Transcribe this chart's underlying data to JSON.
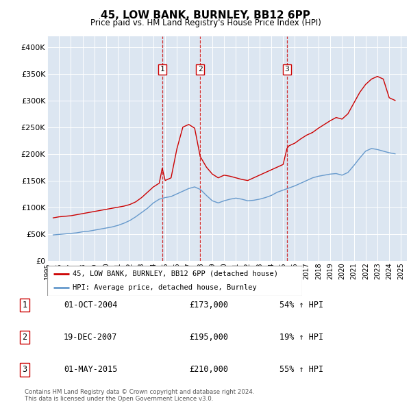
{
  "title": "45, LOW BANK, BURNLEY, BB12 6PP",
  "subtitle": "Price paid vs. HM Land Registry's House Price Index (HPI)",
  "legend_label_red": "45, LOW BANK, BURNLEY, BB12 6PP (detached house)",
  "legend_label_blue": "HPI: Average price, detached house, Burnley",
  "transactions": [
    {
      "num": 1,
      "date": "01-OCT-2004",
      "price": 173000,
      "pct": "54%",
      "dir": "↑"
    },
    {
      "num": 2,
      "date": "19-DEC-2007",
      "price": 195000,
      "pct": "19%",
      "dir": "↑"
    },
    {
      "num": 3,
      "date": "01-MAY-2015",
      "price": 210000,
      "pct": "55%",
      "dir": "↑"
    }
  ],
  "transaction_dates_decimal": [
    2004.75,
    2007.97,
    2015.33
  ],
  "footer": "Contains HM Land Registry data © Crown copyright and database right 2024.\nThis data is licensed under the Open Government Licence v3.0.",
  "plot_bg_color": "#dce6f1",
  "red_color": "#cc0000",
  "blue_color": "#6699cc",
  "ylim": [
    0,
    420000
  ],
  "yticks": [
    0,
    50000,
    100000,
    150000,
    200000,
    250000,
    300000,
    350000,
    400000
  ],
  "ytick_labels": [
    "£0",
    "£50K",
    "£100K",
    "£150K",
    "£200K",
    "£250K",
    "£300K",
    "£350K",
    "£400K"
  ],
  "hpi_x": [
    1995.5,
    1996.0,
    1996.5,
    1997.0,
    1997.5,
    1998.0,
    1998.5,
    1999.0,
    1999.5,
    2000.0,
    2000.5,
    2001.0,
    2001.5,
    2002.0,
    2002.5,
    2003.0,
    2003.5,
    2004.0,
    2004.5,
    2005.0,
    2005.5,
    2006.0,
    2006.5,
    2007.0,
    2007.5,
    2008.0,
    2008.5,
    2009.0,
    2009.5,
    2010.0,
    2010.5,
    2011.0,
    2011.5,
    2012.0,
    2012.5,
    2013.0,
    2013.5,
    2014.0,
    2014.5,
    2015.0,
    2015.5,
    2016.0,
    2016.5,
    2017.0,
    2017.5,
    2018.0,
    2018.5,
    2019.0,
    2019.5,
    2020.0,
    2020.5,
    2021.0,
    2021.5,
    2022.0,
    2022.5,
    2023.0,
    2023.5,
    2024.0,
    2024.5
  ],
  "hpi_y": [
    48000,
    49000,
    50000,
    51000,
    52000,
    54000,
    55000,
    57000,
    59000,
    61000,
    63000,
    66000,
    70000,
    75000,
    82000,
    90000,
    98000,
    108000,
    115000,
    118000,
    120000,
    125000,
    130000,
    135000,
    138000,
    133000,
    122000,
    112000,
    108000,
    112000,
    115000,
    117000,
    115000,
    112000,
    113000,
    115000,
    118000,
    122000,
    128000,
    132000,
    136000,
    140000,
    145000,
    150000,
    155000,
    158000,
    160000,
    162000,
    163000,
    160000,
    165000,
    178000,
    192000,
    205000,
    210000,
    208000,
    205000,
    202000,
    200000
  ],
  "red_x": [
    1995.5,
    1996.0,
    1996.5,
    1997.0,
    1997.5,
    1998.0,
    1998.5,
    1999.0,
    1999.5,
    2000.0,
    2000.5,
    2001.0,
    2001.5,
    2002.0,
    2002.5,
    2003.0,
    2003.5,
    2004.0,
    2004.5,
    2004.75,
    2005.0,
    2005.5,
    2006.0,
    2006.5,
    2007.0,
    2007.5,
    2007.97,
    2008.5,
    2009.0,
    2009.5,
    2010.0,
    2010.5,
    2011.0,
    2011.5,
    2012.0,
    2012.5,
    2013.0,
    2013.5,
    2014.0,
    2014.5,
    2015.0,
    2015.33,
    2015.5,
    2016.0,
    2016.5,
    2017.0,
    2017.5,
    2018.0,
    2018.5,
    2019.0,
    2019.5,
    2020.0,
    2020.5,
    2021.0,
    2021.5,
    2022.0,
    2022.5,
    2023.0,
    2023.5,
    2024.0,
    2024.5
  ],
  "red_y": [
    80000,
    82000,
    83000,
    84000,
    86000,
    88000,
    90000,
    92000,
    94000,
    96000,
    98000,
    100000,
    102000,
    105000,
    110000,
    118000,
    128000,
    138000,
    145000,
    173000,
    150000,
    155000,
    210000,
    250000,
    255000,
    248000,
    195000,
    175000,
    162000,
    155000,
    160000,
    158000,
    155000,
    152000,
    150000,
    155000,
    160000,
    165000,
    170000,
    175000,
    180000,
    210000,
    215000,
    220000,
    228000,
    235000,
    240000,
    248000,
    255000,
    262000,
    268000,
    265000,
    275000,
    295000,
    315000,
    330000,
    340000,
    345000,
    340000,
    305000,
    300000
  ]
}
